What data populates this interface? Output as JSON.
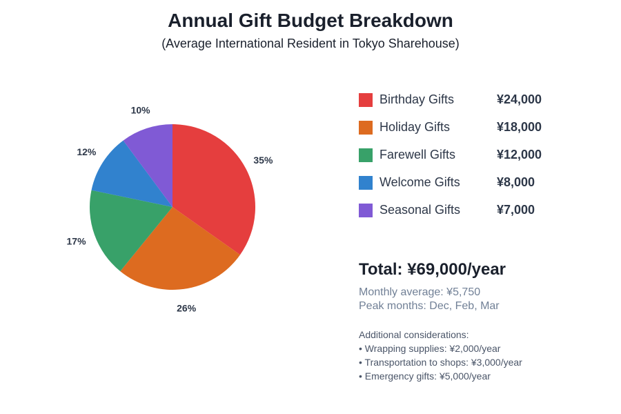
{
  "title": "Annual Gift Budget Breakdown",
  "subtitle": "(Average International Resident in Tokyo Sharehouse)",
  "chart_data": {
    "type": "pie",
    "title": "Annual Gift Budget Breakdown",
    "categories": [
      "Birthday Gifts",
      "Holiday Gifts",
      "Farewell Gifts",
      "Welcome Gifts",
      "Seasonal Gifts"
    ],
    "values": [
      24000,
      18000,
      12000,
      8000,
      7000
    ],
    "value_labels": [
      "¥24,000",
      "¥18,000",
      "¥12,000",
      "¥8,000",
      "¥7,000"
    ],
    "percent_labels": [
      "35%",
      "26%",
      "17%",
      "12%",
      "10%"
    ],
    "colors": [
      "#e53e3e",
      "#dd6b20",
      "#38a169",
      "#3182ce",
      "#805ad5"
    ],
    "legend_position": "right"
  },
  "summary": {
    "total": "Total: ¥69,000/year",
    "monthly": "Monthly average: ¥5,750",
    "peak": "Peak months: Dec, Feb, Mar"
  },
  "notes": {
    "heading": "Additional considerations:",
    "items": [
      "• Wrapping supplies: ¥2,000/year",
      "• Transportation to shops: ¥3,000/year",
      "• Emergency gifts: ¥5,000/year"
    ]
  }
}
